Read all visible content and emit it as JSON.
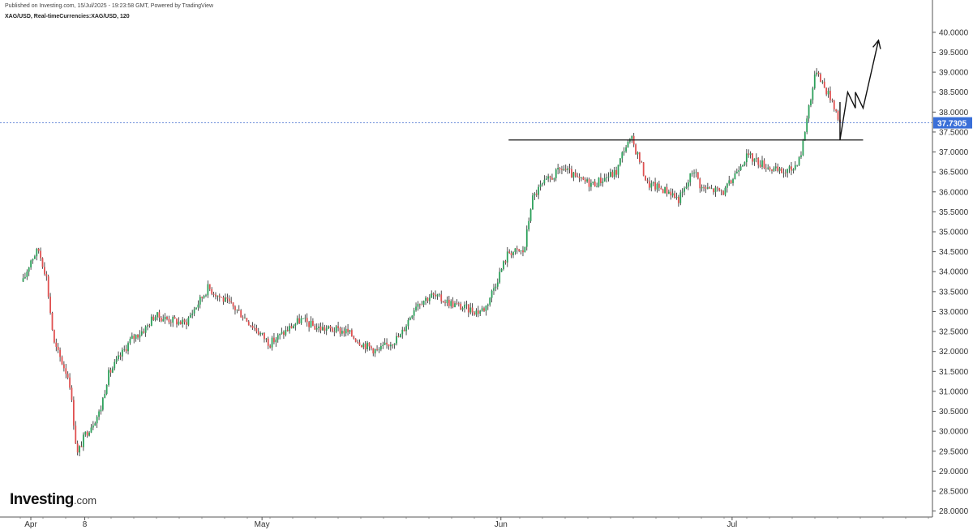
{
  "header": {
    "published": "Published on Investing.com, 15/Jul/2025 - 19:23:58 GMT, Powered by TradingView",
    "symbol": "XAG/USD, Real-timeCurrencies:XAG/USD, 120"
  },
  "logo": {
    "name": "Investing",
    "suffix": ".com"
  },
  "colors": {
    "up": "#2ca05a",
    "down": "#e05050",
    "wick": "#222222",
    "grid": "#d0d0d0",
    "current_line": "#5a7fd6",
    "current_label_bg": "#3a6fd8",
    "annotation": "#111111"
  },
  "chart_data": {
    "type": "candlestick",
    "title": "XAG/USD, Real-timeCurrencies:XAG/USD, 120",
    "ylim": [
      27.85,
      40.2
    ],
    "y_axis_side": "right",
    "y_ticks": [
      "40.0000",
      "39.5000",
      "39.0000",
      "38.5000",
      "38.0000",
      "37.5000",
      "37.0000",
      "36.5000",
      "36.0000",
      "35.5000",
      "35.0000",
      "34.5000",
      "34.0000",
      "33.5000",
      "33.0000",
      "32.5000",
      "32.0000",
      "31.5000",
      "31.0000",
      "30.5000",
      "30.0000",
      "29.5000",
      "29.0000",
      "28.5000",
      "28.0000"
    ],
    "x_ticks": [
      "Apr",
      "8",
      "May",
      "Jun",
      "Jul"
    ],
    "x_tick_dates": [
      "2025-04-01",
      "2025-04-08",
      "2025-05-01",
      "2025-06-01",
      "2025-07-01"
    ],
    "current_price": 37.7305,
    "current_price_label": "37.7305",
    "grid": false,
    "price_path": [
      [
        "2025-03-31",
        33.75
      ],
      [
        "2025-04-01",
        34.3
      ],
      [
        "2025-04-02",
        34.55
      ],
      [
        "2025-04-03",
        33.9
      ],
      [
        "2025-04-04",
        32.2
      ],
      [
        "2025-04-06",
        31.3
      ],
      [
        "2025-04-07",
        29.4
      ],
      [
        "2025-04-08",
        29.9
      ],
      [
        "2025-04-09",
        30.2
      ],
      [
        "2025-04-10",
        30.5
      ],
      [
        "2025-04-11",
        31.4
      ],
      [
        "2025-04-14",
        32.3
      ],
      [
        "2025-04-16",
        32.6
      ],
      [
        "2025-04-17",
        32.9
      ],
      [
        "2025-04-21",
        32.7
      ],
      [
        "2025-04-23",
        33.3
      ],
      [
        "2025-04-24",
        33.6
      ],
      [
        "2025-04-28",
        33.0
      ],
      [
        "2025-04-30",
        32.6
      ],
      [
        "2025-05-02",
        32.2
      ],
      [
        "2025-05-06",
        32.8
      ],
      [
        "2025-05-08",
        32.6
      ],
      [
        "2025-05-12",
        32.5
      ],
      [
        "2025-05-14",
        32.2
      ],
      [
        "2025-05-16",
        32.0
      ],
      [
        "2025-05-19",
        32.4
      ],
      [
        "2025-05-21",
        33.2
      ],
      [
        "2025-05-23",
        33.4
      ],
      [
        "2025-05-27",
        33.1
      ],
      [
        "2025-05-29",
        33.0
      ],
      [
        "2025-05-30",
        33.1
      ],
      [
        "2025-06-02",
        34.5
      ],
      [
        "2025-06-04",
        34.5
      ],
      [
        "2025-06-05",
        35.8
      ],
      [
        "2025-06-06",
        36.1
      ],
      [
        "2025-06-09",
        36.6
      ],
      [
        "2025-06-11",
        36.3
      ],
      [
        "2025-06-13",
        36.2
      ],
      [
        "2025-06-16",
        36.5
      ],
      [
        "2025-06-17",
        37.1
      ],
      [
        "2025-06-18",
        37.3
      ],
      [
        "2025-06-19",
        36.8
      ],
      [
        "2025-06-20",
        36.2
      ],
      [
        "2025-06-23",
        36.0
      ],
      [
        "2025-06-24",
        35.8
      ],
      [
        "2025-06-25",
        36.1
      ],
      [
        "2025-06-26",
        36.6
      ],
      [
        "2025-06-27",
        36.1
      ],
      [
        "2025-06-30",
        36.0
      ],
      [
        "2025-07-01",
        36.3
      ],
      [
        "2025-07-02",
        36.7
      ],
      [
        "2025-07-03",
        36.9
      ],
      [
        "2025-07-04",
        36.8
      ],
      [
        "2025-07-07",
        36.5
      ],
      [
        "2025-07-08",
        36.5
      ],
      [
        "2025-07-09",
        36.6
      ],
      [
        "2025-07-10",
        37.0
      ],
      [
        "2025-07-11",
        38.2
      ],
      [
        "2025-07-12",
        39.1
      ],
      [
        "2025-07-13",
        38.6
      ],
      [
        "2025-07-14",
        38.3
      ],
      [
        "2025-07-15",
        37.73
      ]
    ],
    "resistance_line": {
      "level": 37.3,
      "from": "2025-06-02",
      "to": "2025-07-18"
    },
    "projection_path": [
      [
        "2025-07-15",
        38.25
      ],
      [
        "2025-07-15",
        37.3
      ],
      [
        "2025-07-16",
        38.5
      ],
      [
        "2025-07-17",
        38.1
      ],
      [
        "2025-07-17",
        38.5
      ],
      [
        "2025-07-18",
        38.1
      ],
      [
        "2025-07-20",
        39.8
      ]
    ]
  }
}
